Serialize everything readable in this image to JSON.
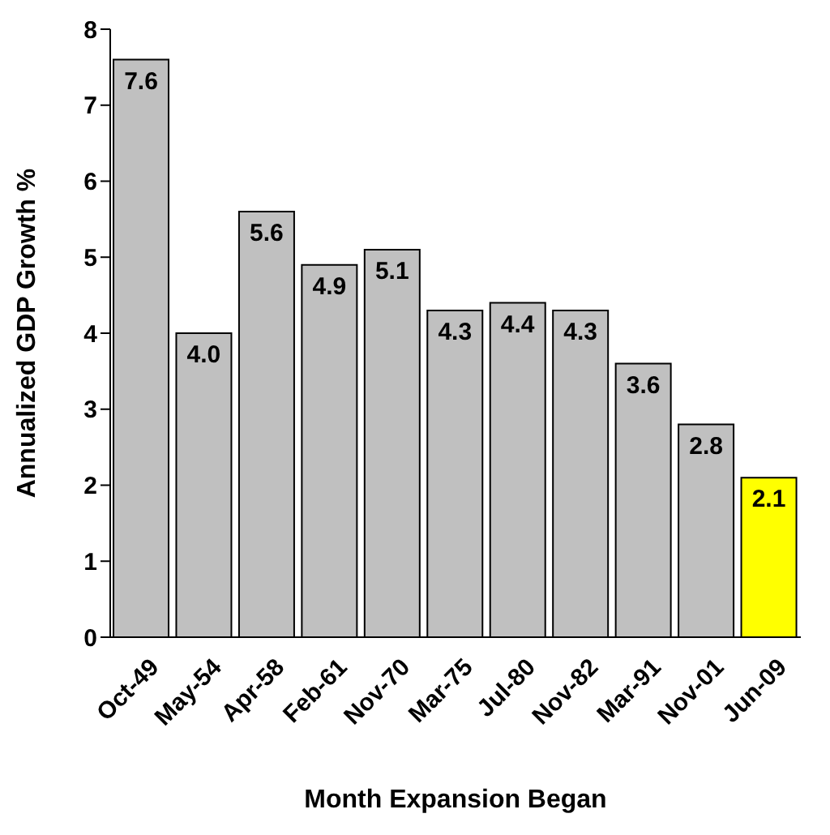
{
  "chart_data": {
    "type": "bar",
    "xlabel": "Month Expansion Began",
    "ylabel": "Annualized GDP Growth %",
    "categories": [
      "Oct-49",
      "May-54",
      "Apr-58",
      "Feb-61",
      "Nov-70",
      "Mar-75",
      "Jul-80",
      "Nov-82",
      "Mar-91",
      "Nov-01",
      "Jun-09"
    ],
    "values": [
      7.6,
      4.0,
      5.6,
      4.9,
      5.1,
      4.3,
      4.4,
      4.3,
      3.6,
      2.8,
      2.1
    ],
    "value_labels": [
      "7.6",
      "4.0",
      "5.6",
      "4.9",
      "5.1",
      "4.3",
      "4.4",
      "4.3",
      "3.6",
      "2.8",
      "2.1"
    ],
    "colors": [
      "#c0c0c0",
      "#c0c0c0",
      "#c0c0c0",
      "#c0c0c0",
      "#c0c0c0",
      "#c0c0c0",
      "#c0c0c0",
      "#c0c0c0",
      "#c0c0c0",
      "#c0c0c0",
      "#ffff00"
    ],
    "ylim": [
      0,
      8
    ],
    "yticks": [
      0,
      1,
      2,
      3,
      4,
      5,
      6,
      7,
      8
    ],
    "grid": false,
    "legend": false
  }
}
